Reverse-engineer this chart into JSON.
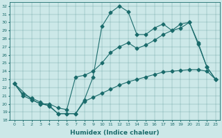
{
  "xlabel": "Humidex (Indice chaleur)",
  "bg_color": "#cce8e8",
  "line_color": "#1a6b6b",
  "xlim": [
    -0.5,
    23.5
  ],
  "ylim": [
    18,
    32.5
  ],
  "xticks": [
    0,
    1,
    2,
    3,
    4,
    5,
    6,
    7,
    8,
    9,
    10,
    11,
    12,
    13,
    14,
    15,
    16,
    17,
    18,
    19,
    20,
    21,
    22,
    23
  ],
  "yticks": [
    18,
    19,
    20,
    21,
    22,
    23,
    24,
    25,
    26,
    27,
    28,
    29,
    30,
    31,
    32
  ],
  "line1_x": [
    0,
    1,
    2,
    3,
    4,
    5,
    6,
    7,
    8,
    9,
    10,
    11,
    12,
    13,
    14,
    15,
    16,
    17,
    18,
    19,
    20,
    21,
    22,
    23
  ],
  "line1_y": [
    22.5,
    21.2,
    20.7,
    20.2,
    19.7,
    18.8,
    18.8,
    18.8,
    20.5,
    23.3,
    29.5,
    31.2,
    32.0,
    31.3,
    28.5,
    28.5,
    29.3,
    29.8,
    29.0,
    29.8,
    30.0,
    27.5,
    24.5,
    23.0
  ],
  "line2_x": [
    0,
    2,
    3,
    4,
    5,
    6,
    7,
    8,
    9,
    10,
    11,
    12,
    13,
    14,
    15,
    16,
    17,
    18,
    19,
    20,
    21,
    22,
    23
  ],
  "line2_y": [
    22.5,
    20.5,
    20.0,
    20.0,
    19.5,
    19.3,
    23.3,
    23.5,
    24.0,
    25.0,
    26.3,
    27.0,
    27.5,
    26.8,
    27.2,
    27.8,
    28.5,
    29.0,
    29.3,
    30.0,
    27.3,
    24.5,
    23.0
  ],
  "line3_x": [
    0,
    1,
    2,
    3,
    4,
    5,
    6,
    7,
    8,
    9,
    10,
    11,
    12,
    13,
    14,
    15,
    16,
    17,
    18,
    19,
    20,
    21,
    22,
    23
  ],
  "line3_y": [
    22.5,
    21.0,
    20.5,
    20.0,
    19.8,
    18.8,
    18.8,
    18.8,
    20.3,
    20.8,
    21.3,
    21.8,
    22.3,
    22.7,
    23.0,
    23.3,
    23.6,
    23.9,
    24.0,
    24.1,
    24.2,
    24.2,
    24.0,
    23.0
  ]
}
